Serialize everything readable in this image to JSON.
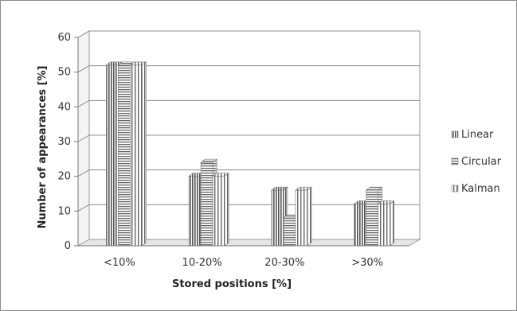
{
  "chart_data": {
    "type": "bar",
    "title": "",
    "xlabel": "Stored positions [%]",
    "ylabel": "Number of appearances [%]",
    "ylim": [
      0,
      60
    ],
    "yticks": [
      0,
      10,
      20,
      30,
      40,
      50,
      60
    ],
    "grid": true,
    "legend_position": "right",
    "categories": [
      "<10%",
      "10-20%",
      "20-30%",
      ">30%"
    ],
    "series": [
      {
        "name": "Linear",
        "values": [
          52,
          20,
          16,
          12
        ],
        "pattern": "vertical-dense",
        "color": "#6f6f6f"
      },
      {
        "name": "Circular",
        "values": [
          52,
          24,
          8,
          16
        ],
        "pattern": "horizontal",
        "color": "#8a8a8a"
      },
      {
        "name": "Kalman",
        "values": [
          52,
          20,
          16,
          12
        ],
        "pattern": "vertical",
        "color": "#7a7a7a"
      }
    ]
  }
}
